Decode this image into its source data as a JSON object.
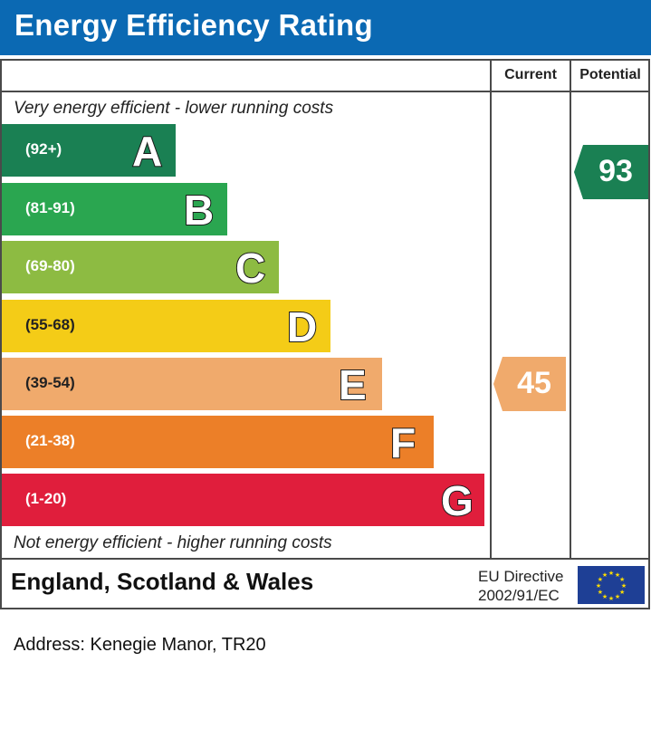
{
  "header": {
    "title": "Energy Efficiency Rating"
  },
  "columns": {
    "current": "Current",
    "potential": "Potential"
  },
  "notes": {
    "top": "Very energy efficient - lower running costs",
    "bottom": "Not energy efficient - higher running costs"
  },
  "chart_data": {
    "type": "bar",
    "title": "Energy Efficiency Rating",
    "bands": [
      {
        "letter": "A",
        "range": "(92+)",
        "color": "#1a8053"
      },
      {
        "letter": "B",
        "range": "(81-91)",
        "color": "#2aa650"
      },
      {
        "letter": "C",
        "range": "(69-80)",
        "color": "#8dbb42"
      },
      {
        "letter": "D",
        "range": "(55-68)",
        "color": "#f4cc17"
      },
      {
        "letter": "E",
        "range": "(39-54)",
        "color": "#f0aa6c"
      },
      {
        "letter": "F",
        "range": "(21-38)",
        "color": "#ec7f28"
      },
      {
        "letter": "G",
        "range": "(1-20)",
        "color": "#e01e3c"
      }
    ],
    "current": {
      "value": "45",
      "band": "E",
      "color": "#f0aa6c"
    },
    "potential": {
      "value": "93",
      "band": "A",
      "color": "#1a8053"
    }
  },
  "footer": {
    "region": "England, Scotland & Wales",
    "directive_line1": "EU Directive",
    "directive_line2": "2002/91/EC",
    "flag_icon": "eu-flag-icon"
  },
  "address": "Address: Kenegie Manor, TR20"
}
